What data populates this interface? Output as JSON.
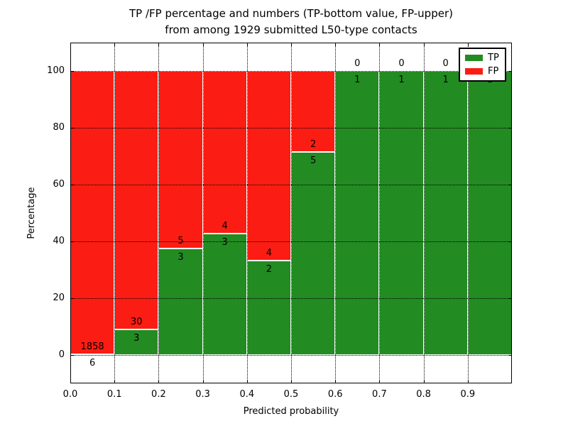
{
  "chart_data": {
    "type": "bar",
    "stacked": true,
    "title_line1": "TP /FP percentage and numbers (TP-bottom value, FP-upper)",
    "title_line2": "from among 1929 submitted L50-type contacts",
    "xlabel": "Predicted probability",
    "ylabel": "Percentage",
    "x_ticks": [
      "0.0",
      "0.1",
      "0.2",
      "0.3",
      "0.4",
      "0.5",
      "0.6",
      "0.7",
      "0.8",
      "0.9"
    ],
    "y_ticks": [
      0,
      20,
      40,
      60,
      80,
      100
    ],
    "xlim": [
      0.0,
      1.0
    ],
    "ylim": [
      -10,
      110
    ],
    "bin_width": 0.1,
    "grid": "dotted",
    "total_contacts": 1929,
    "bins": [
      {
        "range": "0.0-0.1",
        "tp": 6,
        "fp": 1858
      },
      {
        "range": "0.1-0.2",
        "tp": 3,
        "fp": 30
      },
      {
        "range": "0.2-0.3",
        "tp": 3,
        "fp": 5
      },
      {
        "range": "0.3-0.4",
        "tp": 3,
        "fp": 4
      },
      {
        "range": "0.4-0.5",
        "tp": 2,
        "fp": 4
      },
      {
        "range": "0.5-0.6",
        "tp": 5,
        "fp": 2
      },
      {
        "range": "0.6-0.7",
        "tp": 1,
        "fp": 0
      },
      {
        "range": "0.7-0.8",
        "tp": 1,
        "fp": 0
      },
      {
        "range": "0.8-0.9",
        "tp": 1,
        "fp": 0
      },
      {
        "range": "0.9-1.0",
        "tp": 1,
        "fp": 0
      }
    ],
    "colors": {
      "tp": "#228b22",
      "fp": "#fb1d13",
      "bar_edge": "#ffffff",
      "grid": "#000000",
      "text": "#000000",
      "background": "#ffffff"
    },
    "legend": {
      "position": "upper right",
      "items": [
        {
          "label": "TP",
          "color": "#228b22"
        },
        {
          "label": "FP",
          "color": "#fb1d13"
        }
      ]
    }
  }
}
